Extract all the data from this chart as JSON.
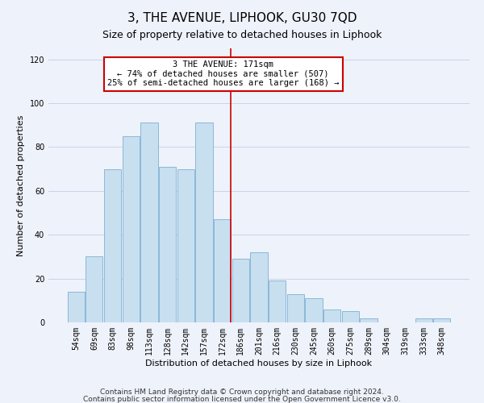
{
  "title": "3, THE AVENUE, LIPHOOK, GU30 7QD",
  "subtitle": "Size of property relative to detached houses in Liphook",
  "xlabel": "Distribution of detached houses by size in Liphook",
  "ylabel": "Number of detached properties",
  "bar_labels": [
    "54sqm",
    "69sqm",
    "83sqm",
    "98sqm",
    "113sqm",
    "128sqm",
    "142sqm",
    "157sqm",
    "172sqm",
    "186sqm",
    "201sqm",
    "216sqm",
    "230sqm",
    "245sqm",
    "260sqm",
    "275sqm",
    "289sqm",
    "304sqm",
    "319sqm",
    "333sqm",
    "348sqm"
  ],
  "bar_values": [
    14,
    30,
    70,
    85,
    91,
    71,
    70,
    91,
    47,
    29,
    32,
    19,
    13,
    11,
    6,
    5,
    2,
    0,
    0,
    2,
    2
  ],
  "bar_color": "#c8dff0",
  "bar_edge_color": "#8ab8d8",
  "marker_index": 8,
  "marker_line_color": "#cc0000",
  "annotation_title": "3 THE AVENUE: 171sqm",
  "annotation_line1": "← 74% of detached houses are smaller (507)",
  "annotation_line2": "25% of semi-detached houses are larger (168) →",
  "annotation_box_color": "#ffffff",
  "annotation_box_edge_color": "#cc0000",
  "ylim": [
    0,
    125
  ],
  "yticks": [
    0,
    20,
    40,
    60,
    80,
    100,
    120
  ],
  "footer1": "Contains HM Land Registry data © Crown copyright and database right 2024.",
  "footer2": "Contains public sector information licensed under the Open Government Licence v3.0.",
  "bg_color": "#eef2fa",
  "grid_color": "#c8d4e8",
  "title_fontsize": 11,
  "subtitle_fontsize": 9,
  "axis_label_fontsize": 8,
  "tick_fontsize": 7,
  "annotation_fontsize": 7.5,
  "footer_fontsize": 6.5
}
